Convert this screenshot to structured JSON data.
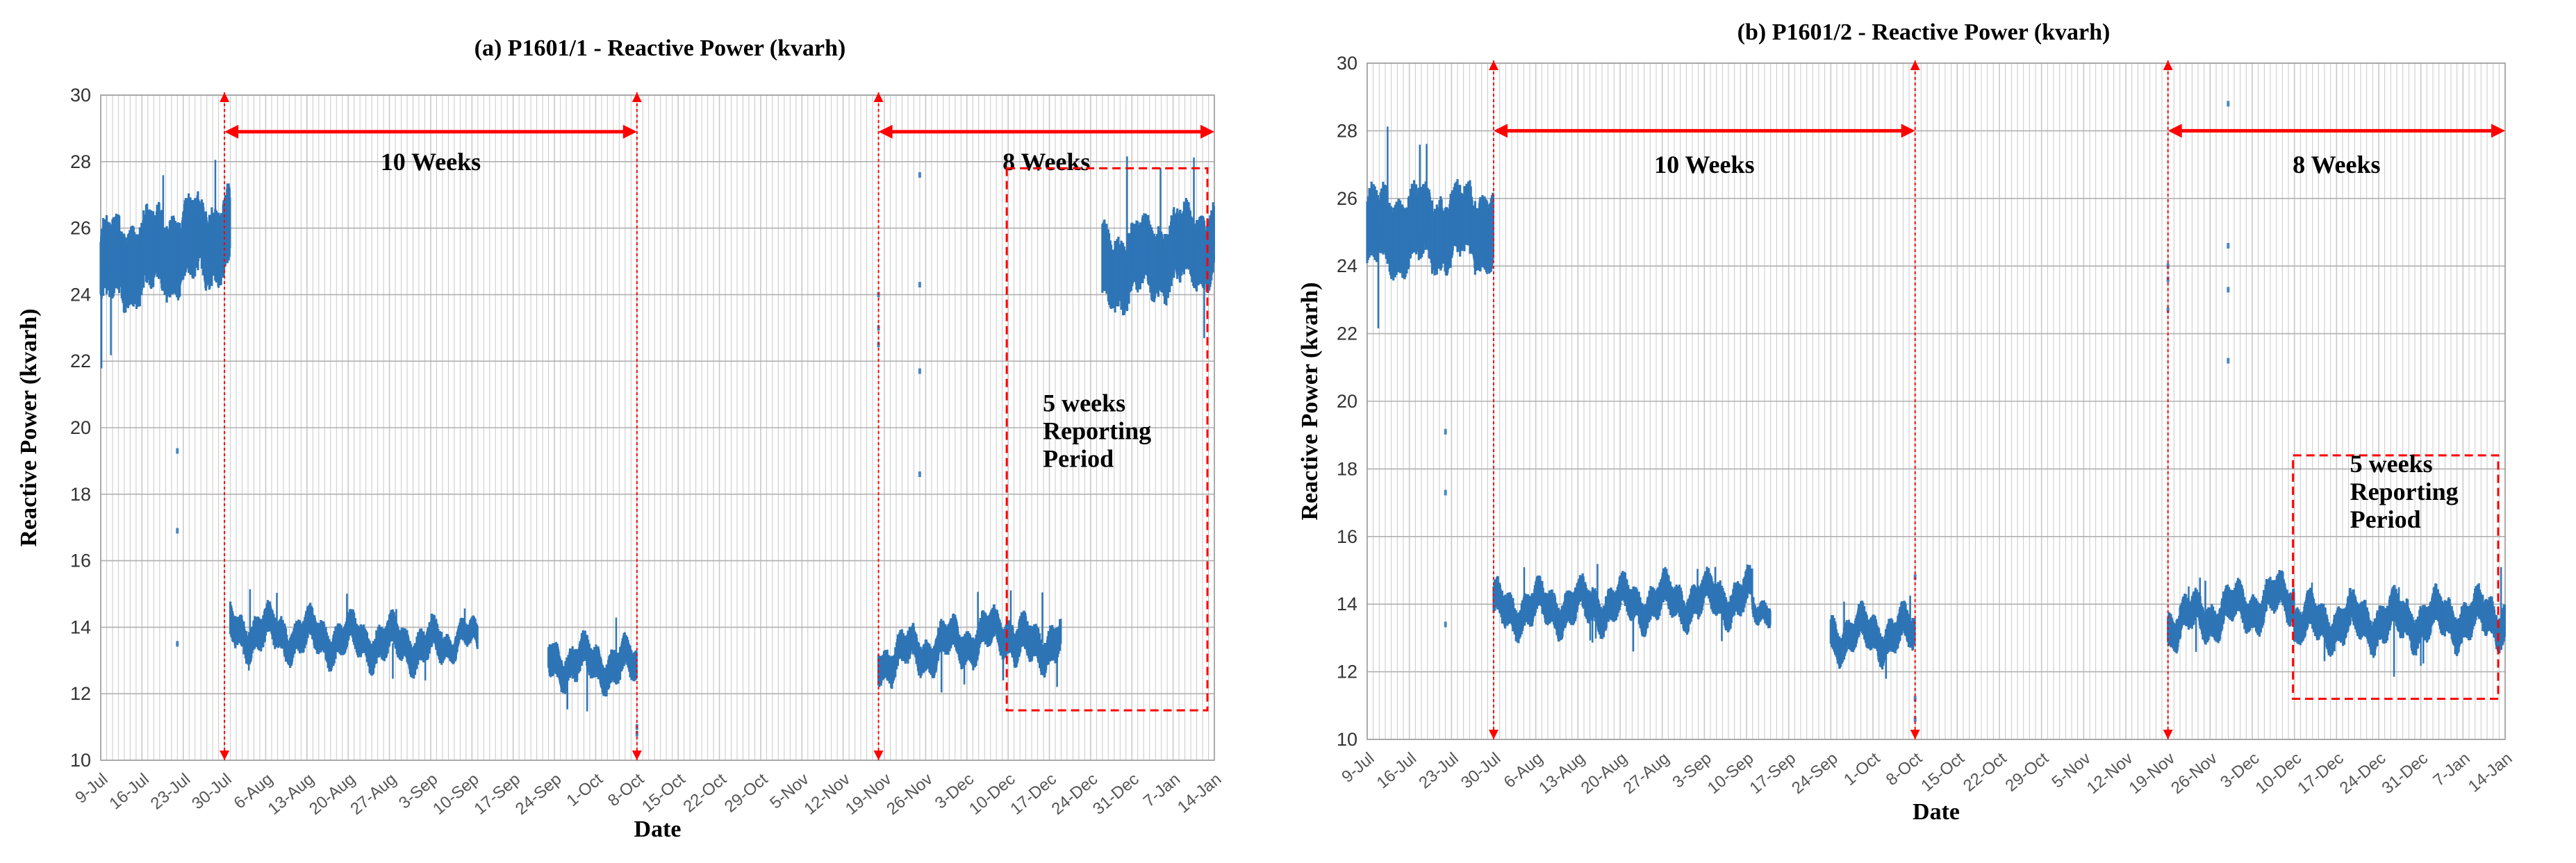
{
  "colors": {
    "series": "#2e75b6",
    "arrow": "#ff0000",
    "box": "#ff0000",
    "grid": "#c8c8c8"
  },
  "chart_data": [
    {
      "type": "scatter",
      "title": "(a) P1601/1 - Reactive Power (kvarh)",
      "xlabel": "Date",
      "ylabel": "Reactive Power (kvarh)",
      "ylim": [
        10,
        30
      ],
      "yticks": [
        10,
        12,
        14,
        16,
        18,
        20,
        22,
        24,
        26,
        28,
        30
      ],
      "xlim": [
        0,
        189
      ],
      "xticks": [
        {
          "label": "9-Jul",
          "day": 0
        },
        {
          "label": "16-Jul",
          "day": 7
        },
        {
          "label": "23-Jul",
          "day": 14
        },
        {
          "label": "30-Jul",
          "day": 21
        },
        {
          "label": "6-Aug",
          "day": 28
        },
        {
          "label": "13-Aug",
          "day": 35
        },
        {
          "label": "20-Aug",
          "day": 42
        },
        {
          "label": "27-Aug",
          "day": 49
        },
        {
          "label": "3-Sep",
          "day": 56
        },
        {
          "label": "10-Sep",
          "day": 63
        },
        {
          "label": "17-Sep",
          "day": 70
        },
        {
          "label": "24-Sep",
          "day": 77
        },
        {
          "label": "1-Oct",
          "day": 84
        },
        {
          "label": "8-Oct",
          "day": 91
        },
        {
          "label": "15-Oct",
          "day": 98
        },
        {
          "label": "22-Oct",
          "day": 105
        },
        {
          "label": "29-Oct",
          "day": 112
        },
        {
          "label": "5-Nov",
          "day": 119
        },
        {
          "label": "12-Nov",
          "day": 126
        },
        {
          "label": "19-Nov",
          "day": 133
        },
        {
          "label": "26-Nov",
          "day": 140
        },
        {
          "label": "3-Dec",
          "day": 147
        },
        {
          "label": "10-Dec",
          "day": 154
        },
        {
          "label": "17-Dec",
          "day": 161
        },
        {
          "label": "24-Dec",
          "day": 168
        },
        {
          "label": "31-Dec",
          "day": 175
        },
        {
          "label": "7-Jan",
          "day": 182
        },
        {
          "label": "14-Jan",
          "day": 189
        }
      ],
      "segments": [
        {
          "start": 0,
          "end": 22,
          "level": 24.8,
          "band": 2.4,
          "trend": 1.0
        },
        {
          "start": 22,
          "end": 58,
          "level": 13.9,
          "band": 1.0,
          "trend": -0.5
        },
        {
          "start": 58,
          "end": 64,
          "level": 13.6,
          "band": 0.7,
          "trend": 0.0
        },
        {
          "start": 76,
          "end": 91,
          "level": 13.0,
          "band": 1.0,
          "trend": -0.2
        },
        {
          "start": 132,
          "end": 155,
          "level": 13.0,
          "band": 1.0,
          "trend": 0.9
        },
        {
          "start": 155,
          "end": 163,
          "level": 13.4,
          "band": 1.1,
          "trend": 0.2
        },
        {
          "start": 170,
          "end": 189,
          "level": 24.7,
          "band": 2.2,
          "trend": 0.9
        }
      ],
      "outliers": [
        {
          "day": 13,
          "values": [
            13.5,
            16.9,
            19.3
          ]
        },
        {
          "day": 132,
          "values": [
            22.5,
            23.0,
            24.0
          ]
        },
        {
          "day": 139,
          "values": [
            24.3,
            27.6,
            21.7,
            18.6
          ]
        },
        {
          "day": 91,
          "values": [
            11.0,
            10.8
          ]
        }
      ],
      "arrows": [
        {
          "label": "10 Weeks",
          "from_day": 21,
          "to_day": 91,
          "y": 28.9,
          "label_y": 28.0
        },
        {
          "label": "8 Weeks",
          "from_day": 132,
          "to_day": 189,
          "y": 28.9,
          "label_y": 28.0
        }
      ],
      "markers": [
        21,
        91,
        132
      ],
      "box": {
        "label": [
          "5 weeks",
          "Reporting",
          "Period"
        ],
        "from_day": 154,
        "to_day": 189,
        "y_low": 11.5,
        "y_high": 27.8
      }
    },
    {
      "type": "scatter",
      "title": "(b) P1601/2 - Reactive Power (kvarh)",
      "xlabel": "Date",
      "ylabel": "Reactive Power (kvarh)",
      "ylim": [
        10,
        30
      ],
      "yticks": [
        10,
        12,
        14,
        16,
        18,
        20,
        22,
        24,
        26,
        28,
        30
      ],
      "xlim": [
        0,
        189
      ],
      "xticks": [
        {
          "label": "9-Jul",
          "day": 0
        },
        {
          "label": "16-Jul",
          "day": 7
        },
        {
          "label": "23-Jul",
          "day": 14
        },
        {
          "label": "30-Jul",
          "day": 21
        },
        {
          "label": "6-Aug",
          "day": 28
        },
        {
          "label": "13-Aug",
          "day": 35
        },
        {
          "label": "20-Aug",
          "day": 42
        },
        {
          "label": "27-Aug",
          "day": 49
        },
        {
          "label": "3-Sep",
          "day": 56
        },
        {
          "label": "10-Sep",
          "day": 63
        },
        {
          "label": "17-Sep",
          "day": 70
        },
        {
          "label": "24-Sep",
          "day": 77
        },
        {
          "label": "1-Oct",
          "day": 84
        },
        {
          "label": "8-Oct",
          "day": 91
        },
        {
          "label": "15-Oct",
          "day": 98
        },
        {
          "label": "22-Oct",
          "day": 105
        },
        {
          "label": "29-Oct",
          "day": 112
        },
        {
          "label": "5-Nov",
          "day": 119
        },
        {
          "label": "12-Nov",
          "day": 126
        },
        {
          "label": "19-Nov",
          "day": 133
        },
        {
          "label": "26-Nov",
          "day": 140
        },
        {
          "label": "3-Dec",
          "day": 147
        },
        {
          "label": "10-Dec",
          "day": 154
        },
        {
          "label": "17-Dec",
          "day": 161
        },
        {
          "label": "24-Dec",
          "day": 168
        },
        {
          "label": "31-Dec",
          "day": 175
        },
        {
          "label": "7-Jan",
          "day": 182
        },
        {
          "label": "14-Jan",
          "day": 189
        }
      ],
      "segments": [
        {
          "start": 0,
          "end": 21,
          "level": 25.0,
          "band": 2.2,
          "trend": 0.2
        },
        {
          "start": 21,
          "end": 64,
          "level": 13.8,
          "band": 1.0,
          "trend": 0.4
        },
        {
          "start": 64,
          "end": 67,
          "level": 14.0,
          "band": 0.6,
          "trend": 0.0
        },
        {
          "start": 77,
          "end": 91,
          "level": 13.1,
          "band": 1.0,
          "trend": 0.0
        },
        {
          "start": 133,
          "end": 154,
          "level": 13.4,
          "band": 1.0,
          "trend": 0.8
        },
        {
          "start": 154,
          "end": 189,
          "level": 13.4,
          "band": 1.1,
          "trend": 0.2
        }
      ],
      "outliers": [
        {
          "day": 13,
          "values": [
            13.4,
            17.3,
            19.1
          ]
        },
        {
          "day": 133,
          "values": [
            22.7,
            23.6,
            24.0
          ]
        },
        {
          "day": 143,
          "values": [
            23.3,
            24.6,
            28.8,
            21.2
          ]
        },
        {
          "day": 91,
          "values": [
            14.8,
            11.2,
            10.6
          ]
        }
      ],
      "arrows": [
        {
          "label": "10 Weeks",
          "from_day": 21,
          "to_day": 91,
          "y": 28.0,
          "label_y": 27.0
        },
        {
          "label": "8 Weeks",
          "from_day": 133,
          "to_day": 189,
          "y": 28.0,
          "label_y": 27.0
        }
      ],
      "markers": [
        21,
        91,
        133
      ],
      "box": {
        "label": [
          "5 weeks",
          "Reporting",
          "Period"
        ],
        "from_day": 154,
        "to_day": 189,
        "y_low": 11.2,
        "y_high": 18.4
      }
    }
  ]
}
